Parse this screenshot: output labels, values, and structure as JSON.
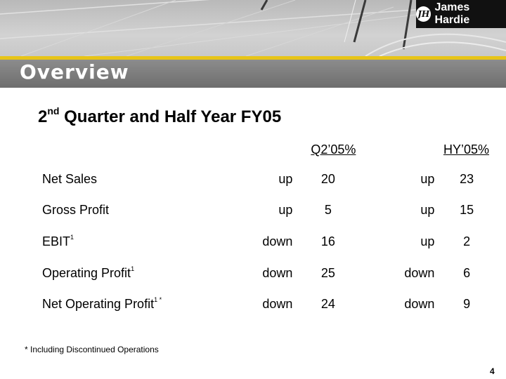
{
  "header": {
    "section_title": "Overview",
    "brand": "James Hardie",
    "brand_mark": "JH"
  },
  "colors": {
    "accent": "#e7c418",
    "banner_dark": "#6e6e6e",
    "logo_background": "#111111"
  },
  "main": {
    "heading_prefix": "2",
    "heading_sup": "nd",
    "heading_rest": " Quarter and Half Year FY05",
    "columns": [
      "Q2’05%",
      "HY’05%"
    ],
    "rows": [
      {
        "label": "Net Sales",
        "note": "",
        "q2_direction": "up",
        "q2_value": "20",
        "hy_direction": "up",
        "hy_value": "23"
      },
      {
        "label": "Gross Profit",
        "note": "",
        "q2_direction": "up",
        "q2_value": "5",
        "hy_direction": "up",
        "hy_value": "15"
      },
      {
        "label": "EBIT",
        "note": "1",
        "q2_direction": "down",
        "q2_value": "16",
        "hy_direction": "up",
        "hy_value": "2"
      },
      {
        "label": "Operating Profit",
        "note": "1",
        "q2_direction": "down",
        "q2_value": "25",
        "hy_direction": "down",
        "hy_value": "6"
      },
      {
        "label": "Net Operating Profit",
        "note": "1 *",
        "q2_direction": "down",
        "q2_value": "24",
        "hy_direction": "down",
        "hy_value": "9"
      }
    ]
  },
  "footer": {
    "footnote": "* Including Discontinued Operations",
    "page_number": "4"
  }
}
